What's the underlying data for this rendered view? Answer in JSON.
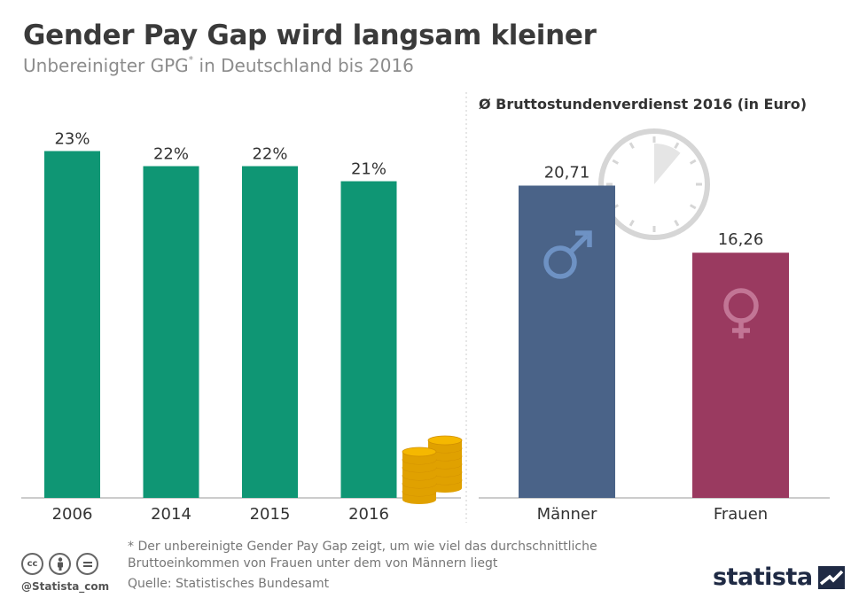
{
  "header": {
    "title": "Gender Pay Gap wird langsam kleiner",
    "subtitle_main": "Unbereinigter GPG",
    "subtitle_mark": "*",
    "subtitle_rest": " in Deutschland bis 2016"
  },
  "chart_data": [
    {
      "type": "bar",
      "categories": [
        "2006",
        "2014",
        "2015",
        "2016"
      ],
      "values": [
        23,
        22,
        22,
        21
      ],
      "value_labels": [
        "23%",
        "22%",
        "22%",
        "21%"
      ],
      "unit": "%",
      "ylim": [
        0,
        23.5
      ],
      "grid": false,
      "colors": {
        "bar": "#0f9674"
      }
    },
    {
      "type": "bar",
      "title": "Ø Bruttostundenverdienst 2016 (in Euro)",
      "categories": [
        "Männer",
        "Frauen"
      ],
      "values": [
        20.71,
        16.26
      ],
      "value_labels": [
        "20,71",
        "16,26"
      ],
      "ylim": [
        0,
        23.5
      ],
      "grid": false,
      "colors": {
        "bars": [
          "#4a6388",
          "#9a3a60"
        ]
      }
    }
  ],
  "footer": {
    "footnote": "* Der unbereinigte Gender Pay Gap zeigt, um wie viel das durchschnittliche Bruttoeinkommen von Frauen unter dem von Männern liegt",
    "source": "Quelle: Statistisches Bundesamt",
    "credit": "@Statista_com",
    "logo": "statista",
    "license_icons": [
      "cc-icon",
      "by-icon",
      "nd-icon"
    ]
  },
  "colors": {
    "title": "#3a3a3a",
    "subtitle": "#8c8c8c",
    "divider": "#cccccc",
    "coin": "#f5b800",
    "clock": "#d6d6d6",
    "male_symbol": "#6e92c4",
    "female_symbol": "#c27595"
  }
}
